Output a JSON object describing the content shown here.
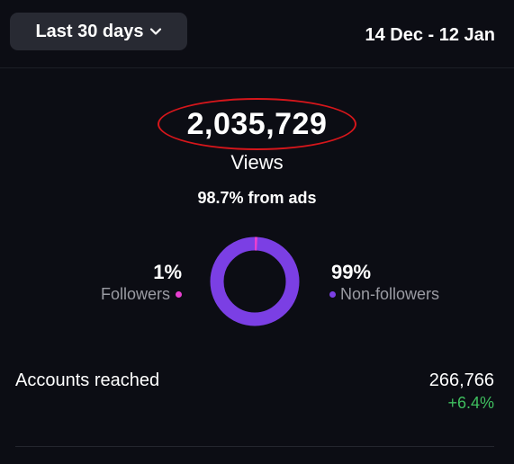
{
  "header": {
    "range_label": "Last 30 days",
    "date_range": "14 Dec - 12 Jan"
  },
  "views": {
    "total": "2,035,729",
    "label": "Views",
    "ads_share": "98.7% from ads"
  },
  "audience": {
    "followers_pct": "1%",
    "followers_label": "Followers",
    "followers_value": 1,
    "followers_color": "#e83fd0",
    "nonfollowers_pct": "99%",
    "nonfollowers_label": "Non-followers",
    "nonfollowers_value": 99,
    "nonfollowers_color": "#7b3fe4"
  },
  "accounts": {
    "label": "Accounts reached",
    "value": "266,766",
    "change": "+6.4%"
  },
  "colors": {
    "highlight_circle": "#d6161b",
    "positive_change": "#3fbf5f"
  }
}
